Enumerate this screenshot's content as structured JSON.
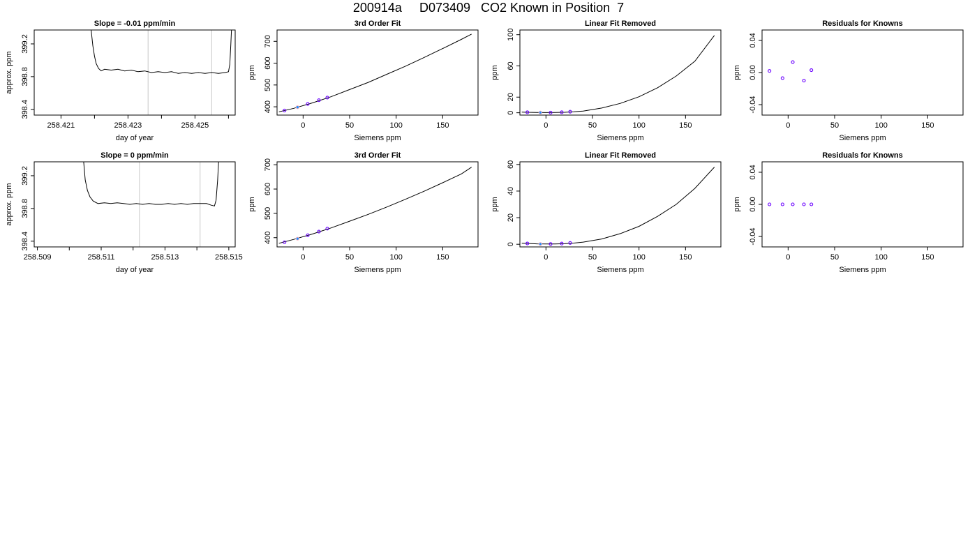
{
  "page_title": "200914a     D073409   CO2 Known in Position  7",
  "colors": {
    "trace": "#000000",
    "grid": "#c8c8c8",
    "point_edge": "#6a00ff",
    "point_fill": "#1e90ff",
    "ref": "#ffb6c1"
  },
  "chart_data": [
    {
      "id": "r1c1",
      "type": "line",
      "title": "Slope =  -0.01  ppm/min",
      "xlabel": "day of year",
      "ylabel": "approx. ppm",
      "xlim": [
        258.4202,
        258.4262
      ],
      "ylim": [
        398.33,
        399.37
      ],
      "xticks": [
        "258.421",
        "258.423",
        "258.425"
      ],
      "xtick_values": [
        258.421,
        258.423,
        258.425
      ],
      "xminor": [
        258.422,
        258.424,
        258.426
      ],
      "yticks": [
        "398.4",
        "398.8",
        "399.2"
      ],
      "ytick_values": [
        398.4,
        398.8,
        399.2
      ],
      "vlines": [
        258.4236,
        258.4255
      ],
      "series": [
        {
          "x": [
            258.4219,
            258.42195,
            258.422,
            258.42205,
            258.42212,
            258.4222,
            258.4223,
            258.4225,
            258.4227,
            258.4229,
            258.4231,
            258.4233,
            258.4235,
            258.4237,
            258.4239,
            258.4241,
            258.4243,
            258.4245,
            258.4247,
            258.4249,
            258.4251,
            258.4253,
            258.4255,
            258.4257,
            258.4259,
            258.426,
            258.42604,
            258.42607,
            258.42609
          ],
          "y": [
            399.37,
            399.18,
            399.05,
            398.96,
            398.9,
            398.87,
            398.89,
            398.88,
            398.89,
            398.87,
            398.88,
            398.86,
            398.87,
            398.85,
            398.86,
            398.85,
            398.86,
            398.84,
            398.85,
            398.84,
            398.85,
            398.84,
            398.85,
            398.84,
            398.85,
            398.86,
            398.95,
            399.2,
            399.37
          ]
        }
      ]
    },
    {
      "id": "r1c2",
      "type": "scatter",
      "title": "3rd Order Fit",
      "xlabel": "Siemens ppm",
      "ylabel": "ppm",
      "xlim": [
        -28,
        188
      ],
      "ylim": [
        362,
        752
      ],
      "xticks": [
        "0",
        "50",
        "100",
        "150"
      ],
      "xtick_values": [
        0,
        50,
        100,
        150
      ],
      "yticks": [
        "400",
        "500",
        "600",
        "700"
      ],
      "ytick_values": [
        400,
        500,
        600,
        700
      ],
      "curve": {
        "x": [
          -26,
          -10,
          10,
          30,
          50,
          70,
          90,
          110,
          130,
          150,
          170,
          181
        ],
        "y": [
          377,
          393,
          418,
          446,
          479,
          512,
          549,
          586,
          626,
          667,
          709,
          733
        ]
      },
      "points": {
        "x": [
          -20,
          5,
          17,
          26
        ],
        "y": [
          383,
          413,
          430,
          442
        ]
      },
      "ref_points": {
        "x": [
          -6
        ],
        "y": [
          398
        ]
      }
    },
    {
      "id": "r1c3",
      "type": "scatter",
      "title": "Linear Fit Removed",
      "xlabel": "Siemens ppm",
      "ylabel": "ppm",
      "xlim": [
        -28,
        188
      ],
      "ylim": [
        -3,
        106
      ],
      "xticks": [
        "0",
        "50",
        "100",
        "150"
      ],
      "xtick_values": [
        0,
        50,
        100,
        150
      ],
      "yticks": [
        "0",
        "20",
        "60",
        "100"
      ],
      "ytick_values": [
        0,
        20,
        60,
        100
      ],
      "curve": {
        "x": [
          -26,
          -20,
          -10,
          0,
          10,
          20,
          30,
          40,
          60,
          80,
          100,
          120,
          140,
          160,
          181
        ],
        "y": [
          0.8,
          0.6,
          0.4,
          0.2,
          0.3,
          0.6,
          1.2,
          2.2,
          6.0,
          12.0,
          20.5,
          32.0,
          47.0,
          66.0,
          99.0
        ]
      },
      "points": {
        "x": [
          -20,
          5,
          17,
          26
        ],
        "y": [
          0.6,
          0.2,
          0.6,
          1.3
        ]
      },
      "ref_points": {
        "x": [
          -6
        ],
        "y": [
          0.3
        ]
      }
    },
    {
      "id": "r1c4",
      "type": "scatter",
      "title": "Residuals for Knowns",
      "xlabel": "Siemens ppm",
      "ylabel": "ppm",
      "xlim": [
        -28,
        188
      ],
      "ylim": [
        -0.053,
        0.053
      ],
      "xticks": [
        "0",
        "50",
        "100",
        "150"
      ],
      "xtick_values": [
        0,
        50,
        100,
        150
      ],
      "yticks": [
        "-0.04",
        "0.00",
        "0.04"
      ],
      "ytick_values": [
        -0.04,
        0.0,
        0.04
      ],
      "points": {
        "x": [
          -20,
          -6,
          5,
          17,
          25
        ],
        "y": [
          0.002,
          -0.007,
          0.013,
          -0.01,
          0.003
        ]
      }
    },
    {
      "id": "r2c1",
      "type": "line",
      "title": "Slope =  0  ppm/min",
      "xlabel": "day of year",
      "ylabel": "approx. ppm",
      "xlim": [
        258.5089,
        258.5152
      ],
      "ylim": [
        398.33,
        399.37
      ],
      "xticks": [
        "258.509",
        "258.511",
        "258.513",
        "258.515"
      ],
      "xtick_values": [
        258.509,
        258.511,
        258.513,
        258.515
      ],
      "xminor": [
        258.51,
        258.512,
        258.514
      ],
      "yticks": [
        "398.4",
        "398.8",
        "399.2"
      ],
      "ytick_values": [
        398.4,
        398.8,
        399.2
      ],
      "vlines": [
        258.5122,
        258.5141
      ],
      "series": [
        {
          "x": [
            258.51045,
            258.5105,
            258.51057,
            258.51065,
            258.51075,
            258.5109,
            258.5111,
            258.5113,
            258.5115,
            258.5117,
            258.5119,
            258.5121,
            258.5123,
            258.5125,
            258.5127,
            258.5129,
            258.5131,
            258.5133,
            258.5135,
            258.5137,
            258.5139,
            258.5141,
            258.5143,
            258.51445,
            258.51455,
            258.5146,
            258.51465,
            258.51468
          ],
          "y": [
            399.37,
            399.15,
            399.02,
            398.94,
            398.89,
            398.86,
            398.87,
            398.86,
            398.87,
            398.86,
            398.85,
            398.86,
            398.85,
            398.86,
            398.85,
            398.85,
            398.86,
            398.85,
            398.86,
            398.85,
            398.86,
            398.86,
            398.86,
            398.84,
            398.83,
            398.9,
            399.15,
            399.37
          ]
        }
      ]
    },
    {
      "id": "r2c2",
      "type": "scatter",
      "title": "3rd Order Fit",
      "xlabel": "Siemens ppm",
      "ylabel": "ppm",
      "xlim": [
        -28,
        188
      ],
      "ylim": [
        362,
        712
      ],
      "xticks": [
        "0",
        "50",
        "100",
        "150"
      ],
      "xtick_values": [
        0,
        50,
        100,
        150
      ],
      "yticks": [
        "400",
        "500",
        "600",
        "700"
      ],
      "ytick_values": [
        400,
        500,
        600,
        700
      ],
      "curve": {
        "x": [
          -26,
          -10,
          10,
          30,
          50,
          70,
          90,
          110,
          130,
          150,
          170,
          181
        ],
        "y": [
          377,
          393,
          415,
          440,
          468,
          496,
          526,
          558,
          591,
          626,
          662,
          690
        ]
      },
      "points": {
        "x": [
          -20,
          5,
          17,
          26
        ],
        "y": [
          381,
          410,
          425,
          437
        ]
      },
      "ref_points": {
        "x": [
          -6
        ],
        "y": [
          396
        ]
      }
    },
    {
      "id": "r2c3",
      "type": "scatter",
      "title": "Linear Fit Removed",
      "xlabel": "Siemens ppm",
      "ylabel": "ppm",
      "xlim": [
        -28,
        188
      ],
      "ylim": [
        -2,
        62
      ],
      "xticks": [
        "0",
        "50",
        "100",
        "150"
      ],
      "xtick_values": [
        0,
        50,
        100,
        150
      ],
      "yticks": [
        "0",
        "20",
        "40",
        "60"
      ],
      "ytick_values": [
        0,
        20,
        40,
        60
      ],
      "curve": {
        "x": [
          -26,
          -20,
          -10,
          0,
          10,
          20,
          30,
          40,
          60,
          80,
          100,
          120,
          140,
          160,
          181
        ],
        "y": [
          0.8,
          0.6,
          0.3,
          0.2,
          0.2,
          0.4,
          0.9,
          1.6,
          4.0,
          8.0,
          13.5,
          21.0,
          30.0,
          42.0,
          58.0
        ]
      },
      "points": {
        "x": [
          -20,
          5,
          17,
          26
        ],
        "y": [
          0.6,
          0.2,
          0.5,
          1.0
        ]
      },
      "ref_points": {
        "x": [
          -6
        ],
        "y": [
          0.2
        ]
      }
    },
    {
      "id": "r2c4",
      "type": "scatter",
      "title": "Residuals for Knowns",
      "xlabel": "Siemens ppm",
      "ylabel": "ppm",
      "xlim": [
        -28,
        188
      ],
      "ylim": [
        -0.053,
        0.053
      ],
      "xticks": [
        "0",
        "50",
        "100",
        "150"
      ],
      "xtick_values": [
        0,
        50,
        100,
        150
      ],
      "yticks": [
        "-0.04",
        "0.00",
        "0.04"
      ],
      "ytick_values": [
        -0.04,
        0.0,
        0.04
      ],
      "points": {
        "x": [
          -20,
          -6,
          5,
          17,
          25
        ],
        "y": [
          0.0,
          0.0,
          0.0,
          0.0,
          0.0
        ]
      }
    }
  ]
}
